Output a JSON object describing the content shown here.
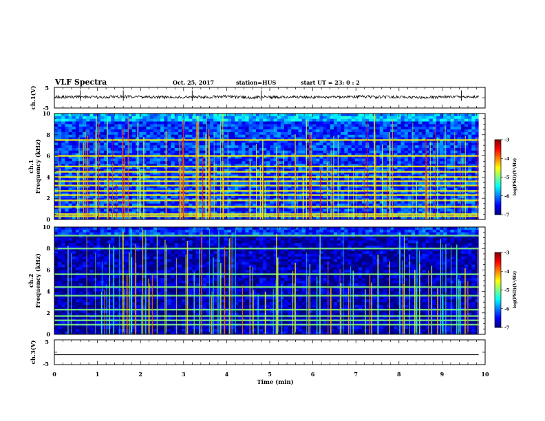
{
  "header": {
    "title": "VLF Spectra",
    "date": "Oct. 25, 2017",
    "station": "station=HUS",
    "start_ut": "start  UT =   23: 0  : 2"
  },
  "colors": {
    "spectrogram_low": "#00007a",
    "spectrogram_mid": "#1e50ff",
    "spectrogram_high": "#38e8d8",
    "trace": "#000000",
    "background": "#ffffff"
  },
  "chart_data": [
    {
      "type": "line",
      "name": "ch1-waveform",
      "ylabel": "ch.1(V)",
      "ylim": [
        -5,
        5
      ],
      "ytick_labels": [
        "5",
        "-5"
      ],
      "xlim": [
        0,
        10
      ],
      "x": [
        0,
        0.5,
        1,
        1.5,
        2,
        2.5,
        3,
        3.5,
        4,
        4.5,
        5,
        5.5,
        6,
        6.5,
        7,
        7.5,
        8,
        8.5,
        9,
        9.5,
        9.85
      ],
      "y": [
        0.3,
        0.4,
        0.2,
        0.5,
        0.3,
        0.2,
        0.4,
        0.3,
        0.5,
        0.2,
        0.3,
        0.4,
        0.2,
        0.3,
        0.5,
        0.3,
        0.4,
        0.2,
        0.3,
        0.4,
        0.3
      ],
      "spikes": [
        0.6,
        1.6,
        3.2,
        4.8,
        9.45
      ],
      "grid": false
    },
    {
      "type": "heatmap",
      "name": "ch1-spectrogram",
      "ylabel": "ch.1\nFrequency (kHz)",
      "ylim": [
        0,
        10
      ],
      "ytick_labels": [
        "0",
        "2",
        "4",
        "6",
        "8",
        "10"
      ],
      "xlim": [
        0,
        10
      ],
      "data_end_min": 9.85,
      "base_level": -6.3,
      "tones_khz": [
        0.3,
        0.5,
        1.2,
        1.8,
        2.3,
        2.7,
        3.2,
        3.6,
        4.0,
        4.5,
        5.0,
        6.0,
        7.5
      ],
      "colorbar": {
        "label": "log(PSD)(V²/Hz)",
        "range": [
          -7,
          -3
        ],
        "tick_labels": [
          "-3",
          "-4",
          "-5",
          "-6",
          "-7"
        ]
      }
    },
    {
      "type": "heatmap",
      "name": "ch2-spectrogram",
      "ylabel": "ch.2\nFrequency (kHz)",
      "ylim": [
        0,
        10
      ],
      "ytick_labels": [
        "0",
        "2",
        "4",
        "6",
        "8",
        "10"
      ],
      "xlim": [
        0,
        10
      ],
      "data_end_min": 9.85,
      "base_level": -6.8,
      "tones_khz": [
        0.9,
        1.3,
        1.7,
        2.3,
        3.6,
        4.4,
        5.6,
        8.0,
        9.2
      ],
      "colorbar": {
        "label": "log(PSD)(V²/Hz)",
        "range": [
          -7,
          -3
        ],
        "tick_labels": [
          "-3",
          "-4",
          "-5",
          "-6",
          "-7"
        ]
      }
    },
    {
      "type": "line",
      "name": "ch3-waveform",
      "ylabel": "ch.3(V)",
      "ylim": [
        -5,
        5
      ],
      "ytick_labels": [
        "5",
        "-5"
      ],
      "xlim": [
        0,
        10
      ],
      "x": [
        0,
        9.85
      ],
      "y": [
        -1.0,
        -1.0
      ],
      "grid": false
    }
  ],
  "xaxis": {
    "label": "Time (min)",
    "range": [
      0,
      10
    ],
    "tick_labels": [
      "0",
      "1",
      "2",
      "3",
      "4",
      "5",
      "6",
      "7",
      "8",
      "9",
      "10"
    ]
  }
}
